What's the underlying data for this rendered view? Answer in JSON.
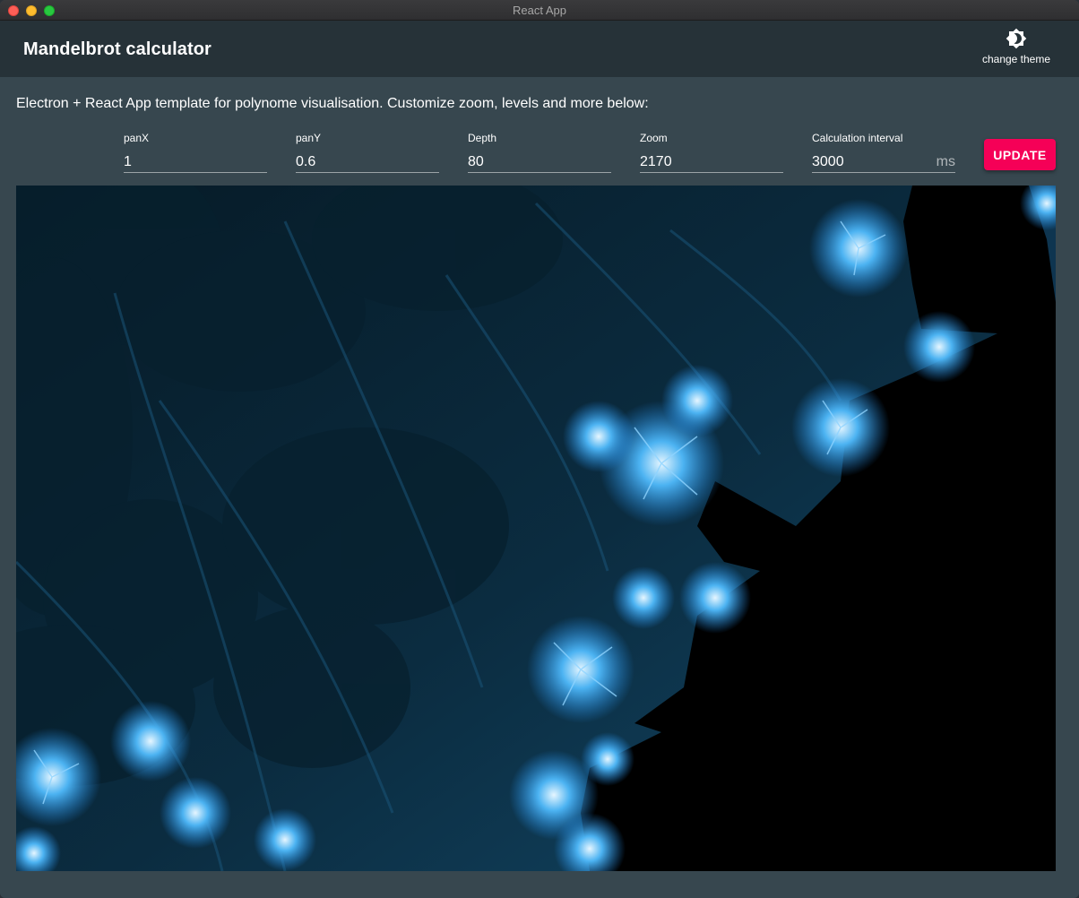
{
  "window": {
    "title": "React App"
  },
  "appbar": {
    "title": "Mandelbrot calculator",
    "theme_button_label": "change theme",
    "theme_icon": "brightness-icon"
  },
  "description": "Electron + React App template for polynome visualisation. Customize zoom, levels and more below:",
  "form": {
    "panX": {
      "label": "panX",
      "value": "1"
    },
    "panY": {
      "label": "panY",
      "value": "0.6"
    },
    "depth": {
      "label": "Depth",
      "value": "80"
    },
    "zoom": {
      "label": "Zoom",
      "value": "2170"
    },
    "interval": {
      "label": "Calculation interval",
      "value": "3000",
      "unit": "ms"
    },
    "update_label": "UPDATE"
  },
  "colors": {
    "appbar": "#263238",
    "background": "#37474f",
    "accent": "#f50057",
    "fractal_edge": "#2196f3",
    "fractal_dark": "#082030"
  }
}
